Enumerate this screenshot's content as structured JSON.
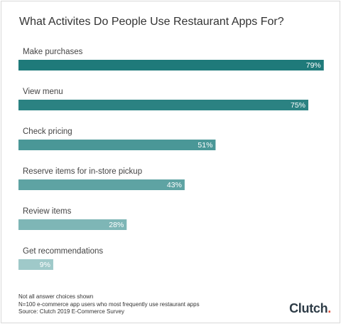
{
  "chart_data": {
    "type": "bar",
    "orientation": "horizontal",
    "title": "What Activites Do People Use Restaurant Apps For?",
    "categories": [
      "Make purchases",
      "View menu",
      "Check pricing",
      "Reserve items for in-store pickup",
      "Review items",
      "Get recommendations"
    ],
    "values": [
      79,
      75,
      51,
      43,
      28,
      9
    ],
    "value_labels": [
      "79%",
      "75%",
      "51%",
      "43%",
      "28%",
      "9%"
    ],
    "unit": "%",
    "xlim": [
      0,
      100
    ],
    "grid": false,
    "colors": [
      "#1f7a7a",
      "#2b8282",
      "#4a9797",
      "#5ea3a3",
      "#7eb6b6",
      "#9fc9c9"
    ]
  },
  "footnotes": [
    "Not all answer choices shown",
    "N=100 e-commerce app users who most frequently use restaurant apps",
    "Source: Clutch 2019 E-Commerce Survey"
  ],
  "brand": {
    "name": "Clutch",
    "dot": "."
  }
}
